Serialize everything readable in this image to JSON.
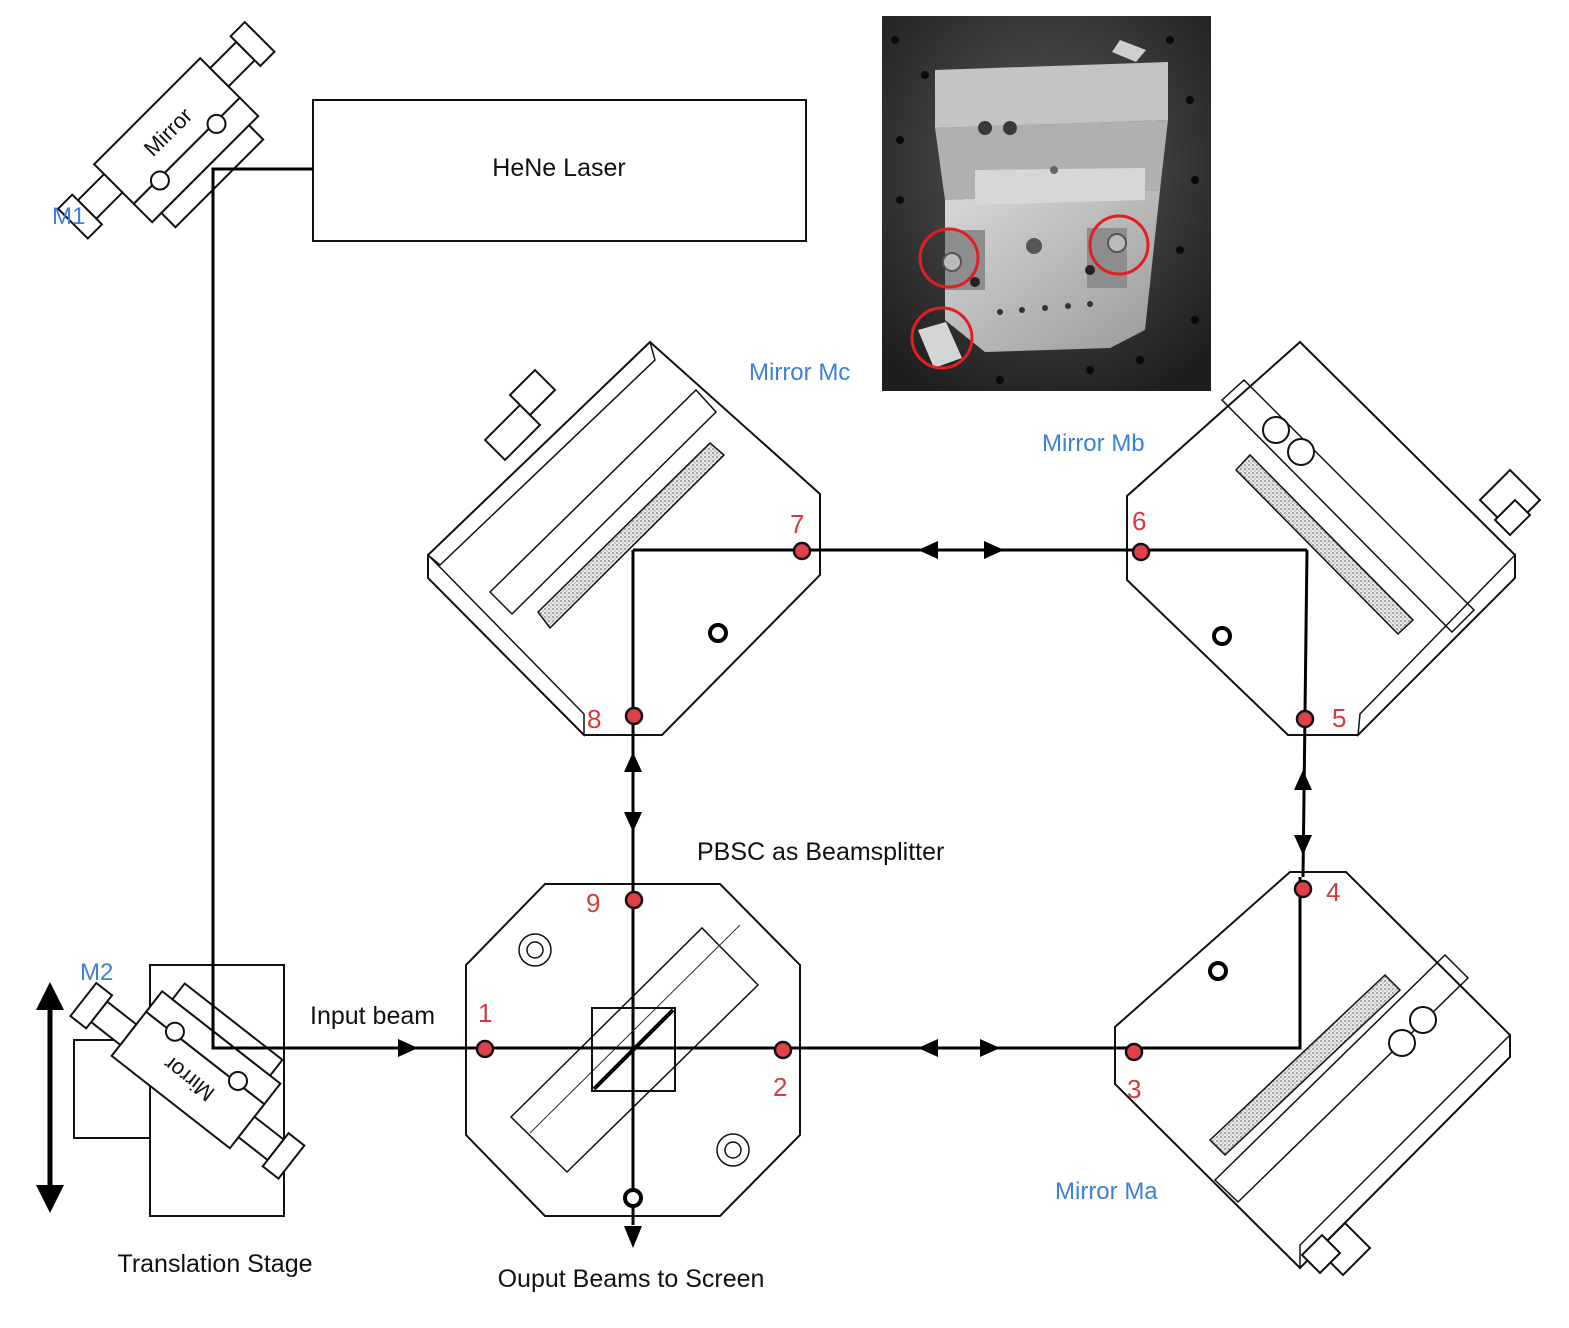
{
  "labels": {
    "hene_laser": "HeNe Laser",
    "m1": "M1",
    "m2": "M2",
    "mirror_text_m1": "Mirror",
    "mirror_text_m2": "Mirror",
    "mirror_mc": "Mirror Mc",
    "mirror_mb": "Mirror Mb",
    "mirror_ma": "Mirror Ma",
    "pbsc": "PBSC as Beamsplitter",
    "input_beam": "Input beam",
    "translation_stage": "Translation Stage",
    "output_beams": "Ouput Beams to Screen"
  },
  "points": [
    "1",
    "2",
    "3",
    "4",
    "5",
    "6",
    "7",
    "8",
    "9"
  ],
  "colors": {
    "label_blue": "#3f7fd9",
    "point_red": "#e04048",
    "photo_circle": "#e02020",
    "beam": "#000000"
  },
  "photo": {
    "description_icon": "mirror-mount-photo",
    "highlighted_screws": 3
  }
}
